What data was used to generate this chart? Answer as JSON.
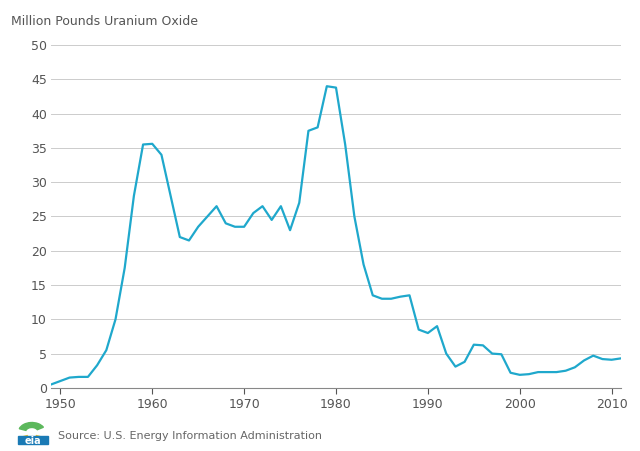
{
  "years": [
    1949,
    1950,
    1951,
    1952,
    1953,
    1954,
    1955,
    1956,
    1957,
    1958,
    1959,
    1960,
    1961,
    1962,
    1963,
    1964,
    1965,
    1966,
    1967,
    1968,
    1969,
    1970,
    1971,
    1972,
    1973,
    1974,
    1975,
    1976,
    1977,
    1978,
    1979,
    1980,
    1981,
    1982,
    1983,
    1984,
    1985,
    1986,
    1987,
    1988,
    1989,
    1990,
    1991,
    1992,
    1993,
    1994,
    1995,
    1996,
    1997,
    1998,
    1999,
    2000,
    2001,
    2002,
    2003,
    2004,
    2005,
    2006,
    2007,
    2008,
    2009,
    2010,
    2011
  ],
  "values": [
    0.5,
    1.0,
    1.5,
    1.6,
    1.6,
    3.3,
    5.5,
    10.0,
    17.5,
    28.0,
    35.5,
    35.6,
    34.0,
    28.0,
    22.0,
    21.5,
    23.5,
    25.0,
    26.5,
    24.0,
    23.5,
    23.5,
    25.5,
    26.5,
    24.5,
    26.5,
    23.0,
    27.0,
    37.5,
    38.0,
    44.0,
    43.8,
    35.5,
    25.0,
    18.0,
    13.5,
    13.0,
    13.0,
    13.3,
    13.5,
    8.5,
    8.0,
    9.0,
    5.0,
    3.1,
    3.8,
    6.3,
    6.2,
    5.0,
    4.9,
    2.2,
    1.9,
    2.0,
    2.3,
    2.3,
    2.3,
    2.5,
    3.0,
    4.0,
    4.7,
    4.2,
    4.1,
    4.3
  ],
  "line_color": "#1fa8cc",
  "line_width": 1.6,
  "background_color": "#ffffff",
  "grid_color": "#cccccc",
  "ylabel": "Million Pounds Uranium Oxide",
  "source": "Source: U.S. Energy Information Administration",
  "ylim": [
    0,
    50
  ],
  "yticks": [
    0,
    5,
    10,
    15,
    20,
    25,
    30,
    35,
    40,
    45,
    50
  ],
  "xlim": [
    1949,
    2011
  ],
  "xticks": [
    1950,
    1960,
    1970,
    1980,
    1990,
    2000,
    2010
  ],
  "ylabel_fontsize": 9,
  "tick_fontsize": 9,
  "source_fontsize": 8
}
